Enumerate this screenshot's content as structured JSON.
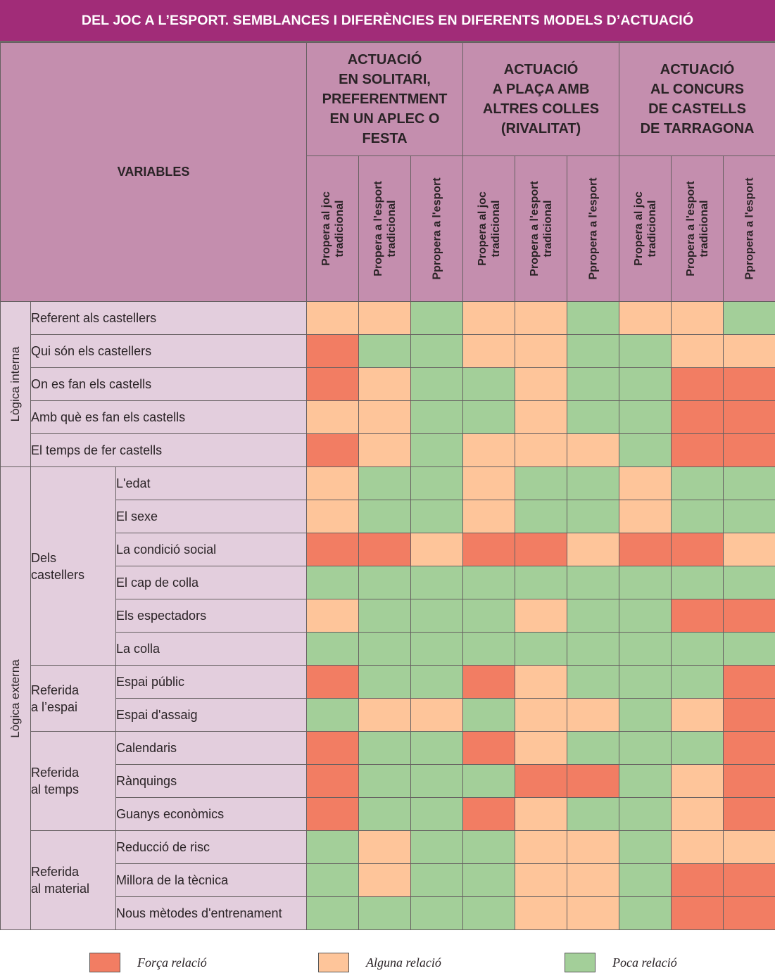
{
  "title": "DEL JOC A L’ESPORT. SEMBLANCES I DIFERÈNCIES EN DIFERENTS MODELS D’ACTUACIÓ",
  "colors": {
    "title_bg": "#a12c78",
    "header_bg": "#c48eae",
    "label_bg": "#e3cedd",
    "F": "#f27d63",
    "A": "#fec59a",
    "P": "#a3cf99"
  },
  "chart_data": {
    "type": "heatmap",
    "title": "DEL JOC A L’ESPORT. SEMBLANCES I DIFERÈNCIES EN DIFERENTS MODELS D’ACTUACIÓ",
    "variables_header": "VARIABLES",
    "column_groups": [
      {
        "label": "ACTUACIÓ\nEN SOLITARI,\nPREFERENTMENT\nEN UN APLEC O\nFESTA"
      },
      {
        "label": "ACTUACIÓ\nA PLAÇA AMB\nALTRES COLLES\n(RIVALITAT)"
      },
      {
        "label": "ACTUACIÓ\nAL CONCURS\nDE CASTELLS\nDE TARRAGONA"
      }
    ],
    "columns": [
      "Propera al joc\ntradicional",
      "Propera a l'esport\ntradicional",
      "Ppropera a l'esport",
      "Propera al joc\ntradicional",
      "Propera a l'esport\ntradicional",
      "Ppropera a l'esport",
      "Propera al joc\ntradicional",
      "Propera a l'esport\ntradicional",
      "Ppropera a l'esport"
    ],
    "outer_groups": [
      {
        "label": "Lògica interna",
        "span": 5
      },
      {
        "label": "Lògica externa",
        "span": 14
      }
    ],
    "sub_groups": [
      {
        "label": "",
        "span": 5
      },
      {
        "label": "Dels\ncastellers",
        "span": 6
      },
      {
        "label": "Referida\na l’espai",
        "span": 2
      },
      {
        "label": "Referida\nal temps",
        "span": 3
      },
      {
        "label": "Referida\nal material",
        "span": 3
      }
    ],
    "rows": [
      {
        "label": "Referent als castellers",
        "values": [
          "A",
          "A",
          "P",
          "A",
          "A",
          "P",
          "A",
          "A",
          "P"
        ]
      },
      {
        "label": "Qui són els castellers",
        "values": [
          "F",
          "P",
          "P",
          "A",
          "A",
          "P",
          "P",
          "A",
          "A"
        ]
      },
      {
        "label": "On es fan els castells",
        "values": [
          "F",
          "A",
          "P",
          "P",
          "A",
          "P",
          "P",
          "F",
          "F"
        ]
      },
      {
        "label": "Amb què es fan els castells",
        "values": [
          "A",
          "A",
          "P",
          "P",
          "A",
          "P",
          "P",
          "F",
          "F"
        ]
      },
      {
        "label": "El temps de fer castells",
        "values": [
          "F",
          "A",
          "P",
          "A",
          "A",
          "A",
          "P",
          "F",
          "F"
        ]
      },
      {
        "label": "L'edat",
        "values": [
          "A",
          "P",
          "P",
          "A",
          "P",
          "P",
          "A",
          "P",
          "P"
        ]
      },
      {
        "label": "El sexe",
        "values": [
          "A",
          "P",
          "P",
          "A",
          "P",
          "P",
          "A",
          "P",
          "P"
        ]
      },
      {
        "label": "La condició social",
        "values": [
          "F",
          "F",
          "A",
          "F",
          "F",
          "A",
          "F",
          "F",
          "A"
        ]
      },
      {
        "label": "El cap de colla",
        "values": [
          "P",
          "P",
          "P",
          "P",
          "P",
          "P",
          "P",
          "P",
          "P"
        ]
      },
      {
        "label": "Els espectadors",
        "values": [
          "A",
          "P",
          "P",
          "P",
          "A",
          "P",
          "P",
          "F",
          "F"
        ]
      },
      {
        "label": "La colla",
        "values": [
          "P",
          "P",
          "P",
          "P",
          "P",
          "P",
          "P",
          "P",
          "P"
        ]
      },
      {
        "label": "Espai públic",
        "values": [
          "F",
          "P",
          "P",
          "F",
          "A",
          "P",
          "P",
          "P",
          "F"
        ]
      },
      {
        "label": "Espai d'assaig",
        "values": [
          "P",
          "A",
          "A",
          "P",
          "A",
          "A",
          "P",
          "A",
          "F"
        ]
      },
      {
        "label": "Calendaris",
        "values": [
          "F",
          "P",
          "P",
          "F",
          "A",
          "P",
          "P",
          "P",
          "F"
        ]
      },
      {
        "label": "Rànquings",
        "values": [
          "F",
          "P",
          "P",
          "P",
          "F",
          "F",
          "P",
          "A",
          "F"
        ]
      },
      {
        "label": "Guanys econòmics",
        "values": [
          "F",
          "P",
          "P",
          "F",
          "A",
          "P",
          "P",
          "A",
          "F"
        ]
      },
      {
        "label": "Reducció de risc",
        "values": [
          "P",
          "A",
          "P",
          "P",
          "A",
          "A",
          "P",
          "A",
          "A"
        ]
      },
      {
        "label": "Millora de la tècnica",
        "values": [
          "P",
          "A",
          "P",
          "P",
          "A",
          "A",
          "P",
          "F",
          "F"
        ]
      },
      {
        "label": "Nous mètodes d'entrenament",
        "values": [
          "P",
          "P",
          "P",
          "P",
          "A",
          "A",
          "P",
          "F",
          "F"
        ]
      }
    ],
    "legend": [
      {
        "key": "F",
        "label": "Força relació"
      },
      {
        "key": "A",
        "label": "Alguna relació"
      },
      {
        "key": "P",
        "label": "Poca relació"
      }
    ],
    "legend_placement": "bottom"
  }
}
